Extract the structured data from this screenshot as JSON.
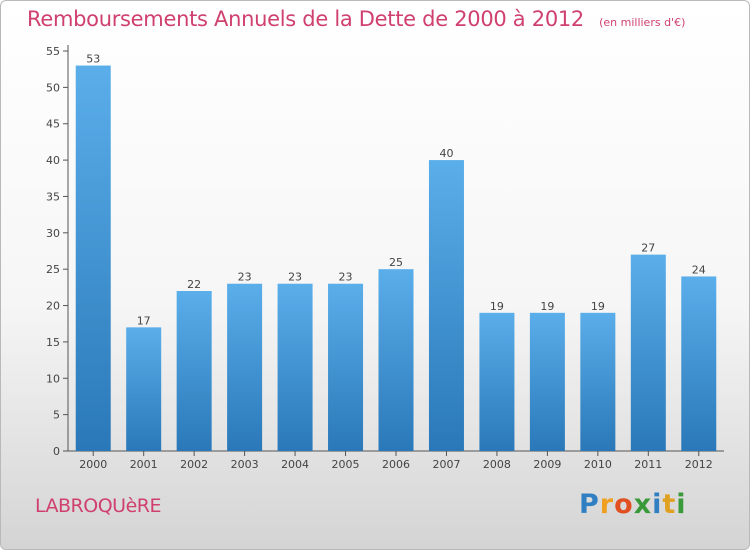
{
  "chart_data": {
    "type": "bar",
    "title": "Remboursements Annuels de la Dette de 2000 à 2012",
    "subtitle": "(en milliers d'€)",
    "categories": [
      "2000",
      "2001",
      "2002",
      "2003",
      "2004",
      "2005",
      "2006",
      "2007",
      "2008",
      "2009",
      "2010",
      "2011",
      "2012"
    ],
    "values": [
      53,
      17,
      22,
      23,
      23,
      23,
      25,
      40,
      19,
      19,
      19,
      27,
      24
    ],
    "ylim": [
      0,
      55
    ],
    "yticks": [
      0,
      5,
      10,
      15,
      20,
      25,
      30,
      35,
      40,
      45,
      50,
      55
    ],
    "grid": false,
    "bar_color_top": "#5aaeea",
    "bar_color_bottom": "#2a78b8"
  },
  "commune": "LABROQUèRE",
  "logo": {
    "text": "Proxiti",
    "letters": [
      {
        "ch": "P",
        "color": "#2f7fc2"
      },
      {
        "ch": "r",
        "color": "#f0a020"
      },
      {
        "ch": "o",
        "color": "#e05020"
      },
      {
        "ch": "x",
        "color": "#3a9a3a"
      },
      {
        "ch": "i",
        "color": "#2f7fc2"
      },
      {
        "ch": "t",
        "color": "#e0a020"
      },
      {
        "ch": "i",
        "color": "#3a9a3a"
      }
    ]
  }
}
